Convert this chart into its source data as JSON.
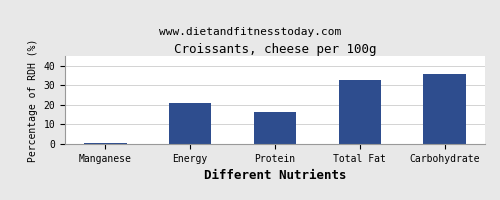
{
  "title": "Croissants, cheese per 100g",
  "subtitle": "www.dietandfitnesstoday.com",
  "xlabel": "Different Nutrients",
  "ylabel": "Percentage of RDH (%)",
  "categories": [
    "Manganese",
    "Energy",
    "Protein",
    "Total Fat",
    "Carbohydrate"
  ],
  "values": [
    0.5,
    21,
    16.5,
    32.5,
    36
  ],
  "bar_color": "#2e4d8e",
  "ylim": [
    0,
    45
  ],
  "yticks": [
    0,
    10,
    20,
    30,
    40
  ],
  "background_color": "#e8e8e8",
  "plot_bg_color": "#ffffff",
  "title_fontsize": 9,
  "subtitle_fontsize": 8,
  "xlabel_fontsize": 9,
  "ylabel_fontsize": 7,
  "tick_fontsize": 7,
  "bar_width": 0.5
}
